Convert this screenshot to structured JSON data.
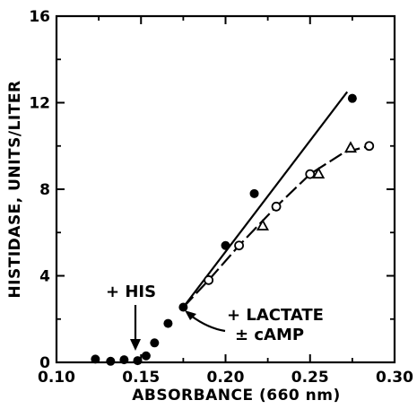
{
  "chart_data": {
    "type": "scatter",
    "xlabel": "ABSORBANCE (660 nm)",
    "ylabel": "HISTIDASE, UNITS/LITER",
    "xlim": [
      0.1,
      0.3
    ],
    "ylim": [
      0,
      16
    ],
    "xticks": [
      "0.10",
      "0.15",
      "0.20",
      "0.25",
      "0.30"
    ],
    "yticks": [
      "0",
      "4",
      "8",
      "12",
      "16"
    ],
    "grid": false,
    "series": [
      {
        "marker": "filled-circle",
        "line": "solid",
        "points": [
          [
            0.123,
            0.15
          ],
          [
            0.132,
            0.05
          ],
          [
            0.14,
            0.12
          ],
          [
            0.148,
            0.08
          ],
          [
            0.153,
            0.3
          ],
          [
            0.158,
            0.9
          ],
          [
            0.166,
            1.8
          ],
          [
            0.175,
            2.55
          ],
          [
            0.2,
            5.4
          ],
          [
            0.217,
            7.8
          ],
          [
            0.275,
            12.2
          ]
        ],
        "fit_line": [
          [
            0.175,
            2.55
          ],
          [
            0.272,
            12.5
          ]
        ]
      },
      {
        "marker": "open-circle",
        "line": "dashed",
        "points": [
          [
            0.19,
            3.8
          ],
          [
            0.208,
            5.4
          ],
          [
            0.23,
            7.2
          ],
          [
            0.25,
            8.7
          ],
          [
            0.285,
            10.0
          ]
        ],
        "fit_line": [
          [
            0.175,
            2.55
          ],
          [
            0.19,
            3.8
          ],
          [
            0.208,
            5.4
          ],
          [
            0.23,
            7.2
          ],
          [
            0.25,
            8.7
          ],
          [
            0.27,
            9.7
          ],
          [
            0.285,
            10.0
          ]
        ]
      },
      {
        "marker": "open-triangle",
        "line": "dashed",
        "points": [
          [
            0.222,
            6.3
          ],
          [
            0.255,
            8.7
          ],
          [
            0.274,
            9.9
          ]
        ]
      }
    ],
    "annotations": [
      {
        "text": "+ HIS",
        "points_to": [
          0.146,
          0.25
        ]
      },
      {
        "text": "+ LACTATE",
        "points_to": [
          0.176,
          2.5
        ]
      },
      {
        "text": "± cAMP"
      }
    ]
  }
}
